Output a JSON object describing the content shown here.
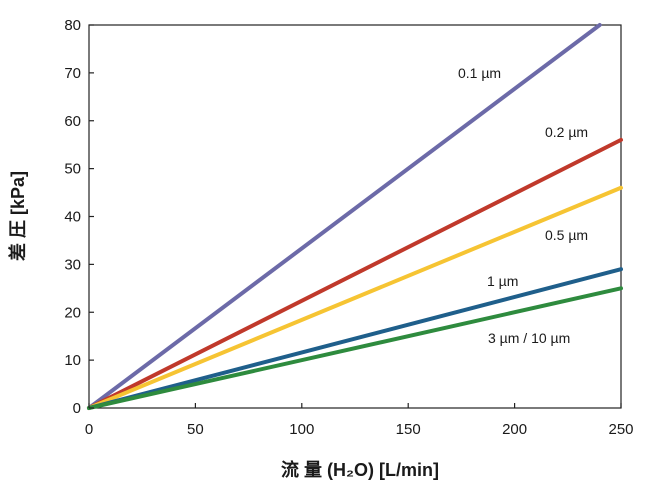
{
  "chart_data": {
    "type": "line",
    "title": "",
    "xlabel": "流 量 (H₂O) [L/min]",
    "ylabel": "差 圧 [kPa]",
    "xlim": [
      0,
      250
    ],
    "ylim": [
      0,
      80
    ],
    "xticks": [
      "0",
      "50",
      "100",
      "150",
      "200",
      "250"
    ],
    "yticks": [
      "0",
      "10",
      "20",
      "30",
      "40",
      "50",
      "60",
      "70",
      "80"
    ],
    "grid": false,
    "legend": "inline-labels-right",
    "series": [
      {
        "name": "0.1 µm",
        "color": "#6c6aa8",
        "x": [
          0,
          240
        ],
        "y": [
          0,
          80
        ]
      },
      {
        "name": "0.2 µm",
        "color": "#c0392b",
        "x": [
          0,
          250
        ],
        "y": [
          0,
          56
        ]
      },
      {
        "name": "0.5 µm",
        "color": "#f6c433",
        "x": [
          0,
          250
        ],
        "y": [
          0,
          46
        ]
      },
      {
        "name": "1 µm",
        "color": "#1f5f8b",
        "x": [
          0,
          250
        ],
        "y": [
          0,
          29
        ]
      },
      {
        "name": "3 µm / 10 µm",
        "color": "#2e8b3e",
        "x": [
          0,
          250
        ],
        "y": [
          0,
          25
        ]
      }
    ]
  }
}
